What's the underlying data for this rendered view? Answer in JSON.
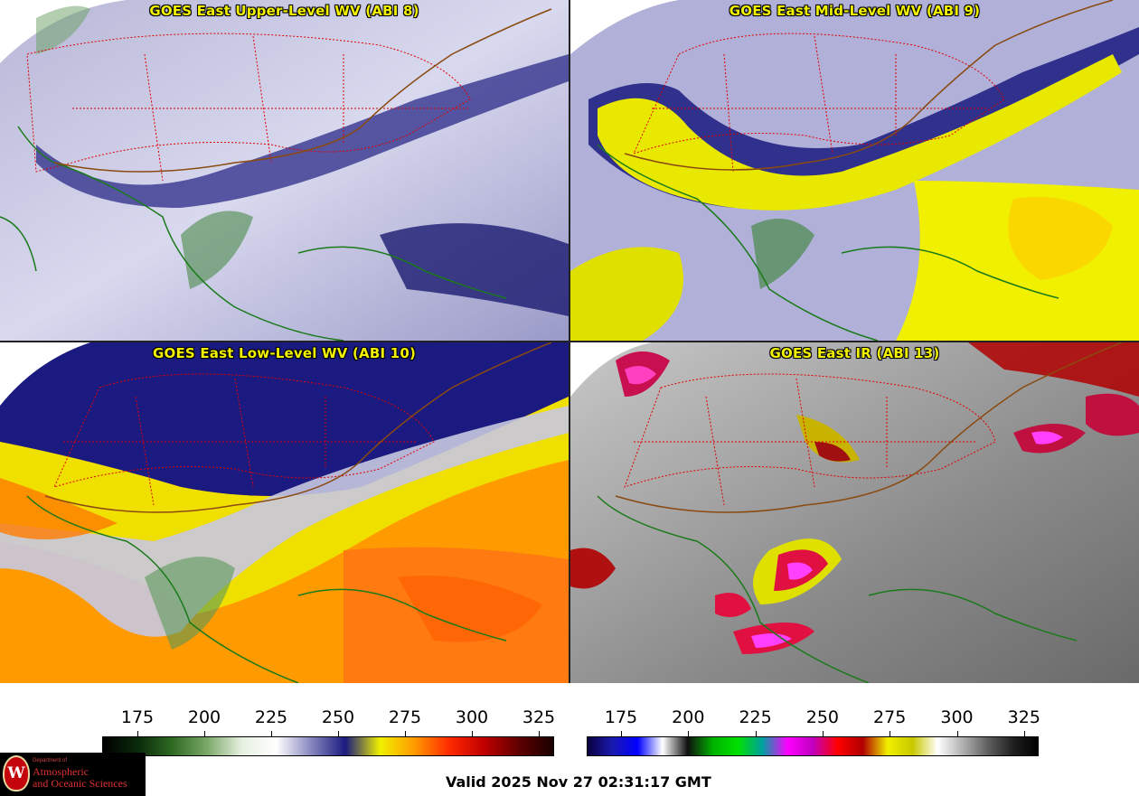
{
  "panels": [
    {
      "id": "p1",
      "title": "GOES East Upper-Level WV (ABI 8)",
      "palette": "wv-upper"
    },
    {
      "id": "p2",
      "title": "GOES East Mid-Level WV (ABI 9)",
      "palette": "wv-mid"
    },
    {
      "id": "p3",
      "title": "GOES East Low-Level WV (ABI 10)",
      "palette": "wv-low"
    },
    {
      "id": "p4",
      "title": "GOES East IR (ABI 13)",
      "palette": "ir"
    }
  ],
  "colorbars": {
    "wv": {
      "ticks": [
        "175",
        "200",
        "225",
        "250",
        "275",
        "300",
        "325"
      ],
      "colors": [
        "#000000",
        "#0a2a0a",
        "#2e6a22",
        "#7aa868",
        "#e6f0e0",
        "#ffffff",
        "#8888c0",
        "#1a1a80",
        "#f0f000",
        "#ff9900",
        "#ff2a00",
        "#c00000",
        "#600000",
        "#1a0000"
      ]
    },
    "ir": {
      "ticks": [
        "175",
        "200",
        "225",
        "250",
        "275",
        "300",
        "325"
      ],
      "colors": [
        "#0a0040",
        "#1a1ab0",
        "#0000ff",
        "#ffffff",
        "#101010",
        "#00b000",
        "#00e000",
        "#00a0a0",
        "#ff00ff",
        "#c000c0",
        "#ff0000",
        "#b00000",
        "#f0f000",
        "#c8c800",
        "#ffffff",
        "#b0b0b0",
        "#606060",
        "#202020",
        "#000000"
      ]
    }
  },
  "logo": {
    "small": "Department of",
    "line1": "Atmospheric",
    "line2": "and Oceanic Sciences",
    "seal_letter": "W"
  },
  "valid_time": "Valid 2025 Nov 27 02:31:17 GMT"
}
